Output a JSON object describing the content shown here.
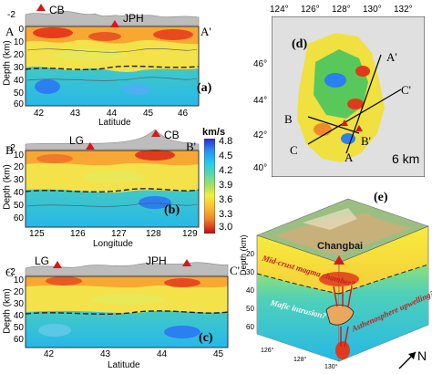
{
  "sections": [
    {
      "id": "a",
      "panel_label": "(a)",
      "start_label": "A",
      "end_label": "A'",
      "volcanoes": [
        "CB",
        "JPH"
      ],
      "topo_ticks": [
        "-2"
      ],
      "depth_ticks": [
        "0",
        "10",
        "20",
        "30",
        "40",
        "50",
        "60"
      ],
      "x_ticks": [
        "42",
        "43",
        "44",
        "45",
        "46"
      ],
      "x_label": "Latitude",
      "y_label": "Depth (km)"
    },
    {
      "id": "b",
      "panel_label": "(b)",
      "start_label": "B",
      "end_label": "B'",
      "volcanoes": [
        "LG",
        "CB"
      ],
      "topo_ticks": [
        "-2"
      ],
      "depth_ticks": [
        "0",
        "10",
        "20",
        "30",
        "40",
        "50",
        "60"
      ],
      "x_ticks": [
        "125",
        "126",
        "127",
        "128",
        "129"
      ],
      "x_label": "Longitude",
      "y_label": "Depth (km)"
    },
    {
      "id": "c",
      "panel_label": "(c)",
      "start_label": "C",
      "end_label": "C'",
      "volcanoes": [
        "LG",
        "JPH"
      ],
      "topo_ticks": [
        "-2"
      ],
      "depth_ticks": [
        "0",
        "10",
        "20",
        "30",
        "40",
        "50",
        "60"
      ],
      "x_ticks": [
        "42",
        "43",
        "44",
        "45"
      ],
      "x_label": "Latitude",
      "y_label": "Depth (km)"
    }
  ],
  "colorbar": {
    "unit": "km/s",
    "ticks": [
      "4.8",
      "4.5",
      "4.2",
      "3.9",
      "3.6",
      "3.3",
      "3.0"
    ],
    "colors": [
      "#2a2ad8",
      "#2a8cf0",
      "#22c8f0",
      "#5ed8a8",
      "#a8e060",
      "#f0ef40",
      "#f8c030",
      "#f08a28",
      "#e04020",
      "#b01010"
    ]
  },
  "map": {
    "panel_label": "(d)",
    "lon_ticks": [
      "124°",
      "126°",
      "128°",
      "130°",
      "132°"
    ],
    "lat_ticks": [
      "46°",
      "44°",
      "42°",
      "40°"
    ],
    "line_labels": [
      "A'",
      "C'",
      "B",
      "C",
      "B'",
      "A"
    ],
    "depth_label": "6 km"
  },
  "block": {
    "panel_label": "(e)",
    "place_label": "Changbai",
    "annotations": [
      "Mid-crust magma chamber?",
      "Mafic intrusion?",
      "Asthenosphere upwelling?"
    ],
    "depth_axis_label": "Depth (km)",
    "depth_ticks": [
      "20",
      "30",
      "40",
      "50",
      "60"
    ],
    "lon_ticks": [
      "126°",
      "128°",
      "130°"
    ],
    "north_label": "N"
  }
}
